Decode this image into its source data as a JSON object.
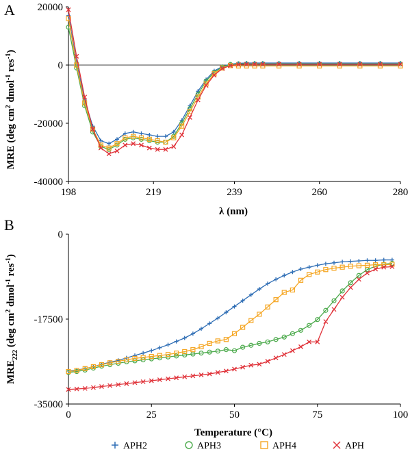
{
  "colors": {
    "APH2": "#2f6eb5",
    "APH3": "#4caa4c",
    "APH4": "#f5a623",
    "APH": "#e0333a"
  },
  "legend": {
    "items": [
      {
        "name": "APH2",
        "marker": "plus",
        "color": "#2f6eb5"
      },
      {
        "name": "APH3",
        "marker": "circle",
        "color": "#4caa4c"
      },
      {
        "name": "APH4",
        "marker": "square",
        "color": "#f5a623"
      },
      {
        "name": "APH",
        "marker": "x",
        "color": "#e0333a"
      }
    ]
  },
  "chart_data": [
    {
      "panel": "A",
      "type": "line",
      "xlabel": "λ (nm)",
      "ylabel_main": "MRE (deg cm",
      "ylabel_sup1": "2",
      "ylabel_mid": " dmol",
      "ylabel_sup2": "-1",
      "ylabel_end": " res",
      "ylabel_sup3": "-1",
      "ylabel_close": ")",
      "xlim": [
        198,
        280
      ],
      "ylim": [
        -40000,
        20000
      ],
      "xticks": [
        198,
        219,
        239,
        260,
        280
      ],
      "yticks": [
        20000,
        0,
        -20000,
        -40000
      ],
      "grid": false,
      "series": [
        {
          "name": "APH2",
          "x": [
            198,
            200,
            202,
            204,
            206,
            208,
            210,
            212,
            214,
            216,
            218,
            220,
            222,
            224,
            226,
            228,
            230,
            232,
            234,
            236,
            238,
            240,
            242,
            244,
            246,
            250,
            255,
            260,
            265,
            270,
            275,
            280
          ],
          "y": [
            17000,
            1000,
            -12000,
            -21000,
            -26000,
            -27000,
            -25500,
            -23500,
            -23000,
            -23500,
            -24000,
            -24500,
            -24500,
            -23000,
            -19000,
            -14000,
            -9000,
            -5000,
            -2000,
            -500,
            300,
            600,
            700,
            700,
            700,
            700,
            700,
            700,
            700,
            700,
            700,
            700
          ]
        },
        {
          "name": "APH3",
          "x": [
            198,
            200,
            202,
            204,
            206,
            208,
            210,
            212,
            214,
            216,
            218,
            220,
            222,
            224,
            226,
            228,
            230,
            232,
            234,
            236,
            238,
            240,
            242,
            244,
            246,
            250,
            255,
            260,
            265,
            270,
            275,
            280
          ],
          "y": [
            13000,
            -1000,
            -14000,
            -23000,
            -28000,
            -29000,
            -27500,
            -25500,
            -25000,
            -25500,
            -26000,
            -26500,
            -26500,
            -24500,
            -20000,
            -15000,
            -10000,
            -5500,
            -2500,
            -700,
            200,
            400,
            400,
            400,
            400,
            400,
            400,
            400,
            400,
            400,
            400,
            400
          ]
        },
        {
          "name": "APH4",
          "x": [
            198,
            200,
            202,
            204,
            206,
            208,
            210,
            212,
            214,
            216,
            218,
            220,
            222,
            224,
            226,
            228,
            230,
            232,
            234,
            236,
            238,
            240,
            242,
            244,
            246,
            250,
            255,
            260,
            265,
            270,
            275,
            280
          ],
          "y": [
            16000,
            0,
            -13000,
            -22000,
            -27500,
            -28500,
            -27000,
            -25000,
            -24500,
            -25000,
            -25500,
            -26000,
            -26500,
            -25000,
            -21000,
            -16000,
            -11000,
            -6500,
            -3000,
            -1000,
            -200,
            -300,
            -300,
            -300,
            -300,
            -300,
            -300,
            -300,
            -300,
            -300,
            -300,
            -300
          ]
        },
        {
          "name": "APH",
          "x": [
            198,
            200,
            202,
            204,
            206,
            208,
            210,
            212,
            214,
            216,
            218,
            220,
            222,
            224,
            226,
            228,
            230,
            232,
            234,
            236,
            238,
            240,
            242,
            244,
            246,
            250,
            255,
            260,
            265,
            270,
            275,
            280
          ],
          "y": [
            19000,
            3000,
            -11000,
            -22000,
            -28500,
            -30500,
            -29500,
            -27500,
            -27000,
            -27500,
            -28500,
            -29000,
            -29000,
            -28000,
            -24000,
            -18000,
            -12000,
            -7000,
            -3500,
            -1200,
            -200,
            200,
            300,
            300,
            300,
            300,
            300,
            300,
            300,
            300,
            300,
            300
          ]
        }
      ]
    },
    {
      "panel": "B",
      "type": "line",
      "xlabel": "Temperature (°C)",
      "ylabel_main": "MRE",
      "ylabel_sub": "222",
      "ylabel_rest": " (deg cm",
      "ylabel_sup1": "2",
      "ylabel_mid": " dmol",
      "ylabel_sup2": "-1",
      "ylabel_end": " res",
      "ylabel_sup3": "-1",
      "ylabel_close": ")",
      "xlim": [
        0,
        100
      ],
      "ylim": [
        -35000,
        0
      ],
      "xticks": [
        0,
        25,
        50,
        75,
        100
      ],
      "yticks": [
        0,
        -17500,
        -35000
      ],
      "grid": false,
      "series": [
        {
          "name": "APH2",
          "x": [
            0,
            2.5,
            5,
            7.5,
            10,
            12.5,
            15,
            17.5,
            20,
            22.5,
            25,
            27.5,
            30,
            32.5,
            35,
            37.5,
            40,
            42.5,
            45,
            47.5,
            50,
            52.5,
            55,
            57.5,
            60,
            62.5,
            65,
            67.5,
            70,
            72.5,
            75,
            77.5,
            80,
            82.5,
            85,
            87.5,
            90,
            92.5,
            95,
            97.5
          ],
          "y": [
            -28200,
            -28000,
            -27700,
            -27300,
            -26800,
            -26400,
            -26000,
            -25500,
            -25000,
            -24500,
            -24000,
            -23400,
            -22800,
            -22100,
            -21400,
            -20500,
            -19500,
            -18400,
            -17300,
            -16100,
            -14900,
            -13700,
            -12500,
            -11300,
            -10200,
            -9300,
            -8500,
            -7800,
            -7200,
            -6800,
            -6400,
            -6100,
            -5900,
            -5700,
            -5600,
            -5500,
            -5400,
            -5400,
            -5300,
            -5300
          ]
        },
        {
          "name": "APH3",
          "x": [
            0,
            2.5,
            5,
            7.5,
            10,
            12.5,
            15,
            17.5,
            20,
            22.5,
            25,
            27.5,
            30,
            32.5,
            35,
            37.5,
            40,
            42.5,
            45,
            47.5,
            50,
            52.5,
            55,
            57.5,
            60,
            62.5,
            65,
            67.5,
            70,
            72.5,
            75,
            77.5,
            80,
            82.5,
            85,
            87.5,
            90,
            92.5,
            95,
            97.5
          ],
          "y": [
            -28500,
            -28300,
            -28000,
            -27600,
            -27200,
            -26900,
            -26600,
            -26300,
            -26100,
            -25900,
            -25700,
            -25500,
            -25300,
            -25100,
            -24900,
            -24700,
            -24500,
            -24300,
            -24100,
            -23800,
            -24000,
            -23300,
            -22900,
            -22500,
            -22200,
            -21700,
            -21200,
            -20500,
            -19800,
            -18800,
            -17600,
            -15700,
            -13700,
            -11700,
            -10000,
            -8500,
            -7300,
            -6600,
            -6200,
            -6000
          ]
        },
        {
          "name": "APH4",
          "x": [
            0,
            2.5,
            5,
            7.5,
            10,
            12.5,
            15,
            17.5,
            20,
            22.5,
            25,
            27.5,
            30,
            32.5,
            35,
            37.5,
            40,
            42.5,
            45,
            47.5,
            50,
            52.5,
            55,
            57.5,
            60,
            62.5,
            65,
            67.5,
            70,
            72.5,
            75,
            77.5,
            80,
            82.5,
            85,
            87.5,
            90,
            92.5,
            95,
            97.5
          ],
          "y": [
            -28300,
            -28100,
            -27700,
            -27300,
            -26900,
            -26500,
            -26200,
            -25900,
            -25600,
            -25400,
            -25200,
            -25000,
            -24800,
            -24500,
            -24200,
            -23800,
            -23200,
            -22500,
            -22000,
            -21700,
            -20500,
            -19200,
            -17800,
            -16500,
            -15000,
            -13500,
            -12000,
            -11500,
            -9500,
            -8300,
            -7800,
            -7300,
            -7000,
            -6800,
            -6600,
            -6500,
            -6400,
            -6300,
            -6300,
            -6200
          ]
        },
        {
          "name": "APH",
          "x": [
            0,
            2.5,
            5,
            7.5,
            10,
            12.5,
            15,
            17.5,
            20,
            22.5,
            25,
            27.5,
            30,
            32.5,
            35,
            37.5,
            40,
            42.5,
            45,
            47.5,
            50,
            52.5,
            55,
            57.5,
            60,
            62.5,
            65,
            67.5,
            70,
            72.5,
            75,
            77.5,
            80,
            82.5,
            85,
            87.5,
            90,
            92.5,
            95,
            97.5
          ],
          "y": [
            -32000,
            -31900,
            -31800,
            -31600,
            -31400,
            -31200,
            -31000,
            -30800,
            -30600,
            -30400,
            -30200,
            -30000,
            -29800,
            -29600,
            -29400,
            -29200,
            -29000,
            -28800,
            -28500,
            -28200,
            -27800,
            -27400,
            -27000,
            -26800,
            -26200,
            -25500,
            -24800,
            -24000,
            -23200,
            -22200,
            -22200,
            -18000,
            -15500,
            -13000,
            -11000,
            -9300,
            -8000,
            -7200,
            -6800,
            -6700
          ]
        }
      ]
    }
  ],
  "panels": {
    "A": {
      "letter": "A"
    },
    "B": {
      "letter": "B"
    }
  }
}
